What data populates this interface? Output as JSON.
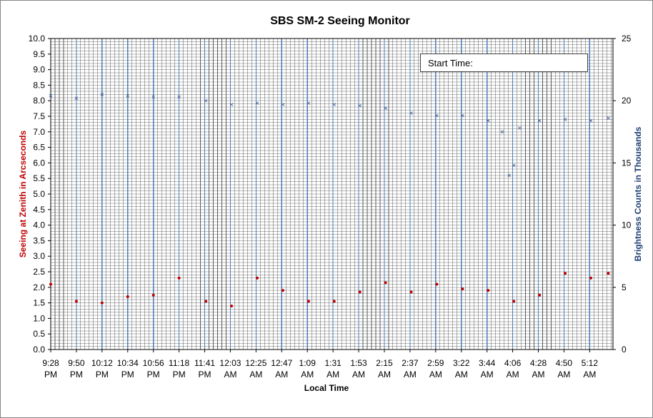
{
  "chart_data": {
    "type": "scatter",
    "title": "SBS SM-2 Seeing Monitor",
    "xlabel": "Local Time",
    "ylabel": "Seeing at Zenith in Arcseconds",
    "y2label": "Brightness Counts in Thousands",
    "annotation": "Start Time:",
    "ylim": [
      0,
      10
    ],
    "y2lim": [
      0,
      25
    ],
    "yticks": [
      "0.0",
      "0.5",
      "1.0",
      "1.5",
      "2.0",
      "2.5",
      "3.0",
      "3.5",
      "4.0",
      "4.5",
      "5.0",
      "5.5",
      "6.0",
      "6.5",
      "7.0",
      "7.5",
      "8.0",
      "8.5",
      "9.0",
      "9.5",
      "10.0"
    ],
    "y2ticks": [
      "0",
      "5",
      "10",
      "15",
      "20",
      "25"
    ],
    "xticks": [
      [
        "9:28",
        "PM"
      ],
      [
        "9:50",
        "PM"
      ],
      [
        "10:12",
        "PM"
      ],
      [
        "10:34",
        "PM"
      ],
      [
        "10:56",
        "PM"
      ],
      [
        "11:18",
        "PM"
      ],
      [
        "11:41",
        "PM"
      ],
      [
        "12:03",
        "AM"
      ],
      [
        "12:25",
        "AM"
      ],
      [
        "12:47",
        "AM"
      ],
      [
        "1:09",
        "AM"
      ],
      [
        "1:31",
        "AM"
      ],
      [
        "1:53",
        "AM"
      ],
      [
        "2:15",
        "AM"
      ],
      [
        "2:37",
        "AM"
      ],
      [
        "2:59",
        "AM"
      ],
      [
        "3:22",
        "AM"
      ],
      [
        "3:44",
        "AM"
      ],
      [
        "4:06",
        "AM"
      ],
      [
        "4:28",
        "AM"
      ],
      [
        "4:50",
        "AM"
      ],
      [
        "5:12",
        "AM"
      ]
    ],
    "grid": true,
    "series": [
      {
        "name": "Seeing",
        "axis": "left",
        "marker": "dot",
        "color": "#c00000",
        "x": [
          0,
          22,
          44,
          66,
          88,
          110,
          133,
          155,
          177,
          199,
          221,
          243,
          265,
          287,
          309,
          331,
          353,
          375,
          397,
          419,
          441,
          463,
          478
        ],
        "values": [
          2.1,
          1.55,
          1.5,
          1.7,
          1.75,
          2.3,
          1.55,
          1.4,
          2.3,
          1.9,
          1.55,
          1.55,
          1.85,
          2.15,
          1.85,
          2.1,
          1.95,
          1.9,
          1.55,
          1.75,
          2.45,
          2.3,
          2.45
        ]
      },
      {
        "name": "Brightness",
        "axis": "right",
        "marker": "x",
        "color": "#4f6d9c",
        "x": [
          0,
          22,
          44,
          66,
          88,
          110,
          133,
          155,
          177,
          199,
          221,
          243,
          265,
          287,
          309,
          331,
          353,
          375,
          387,
          393,
          397,
          402,
          419,
          441,
          463,
          478
        ],
        "values": [
          20.4,
          20.2,
          20.5,
          20.4,
          20.3,
          20.3,
          20.0,
          19.7,
          19.8,
          19.7,
          19.8,
          19.7,
          19.6,
          19.4,
          19.0,
          18.8,
          18.8,
          18.4,
          17.5,
          14.0,
          14.8,
          17.8,
          18.4,
          18.5,
          18.4,
          18.6
        ]
      }
    ]
  }
}
